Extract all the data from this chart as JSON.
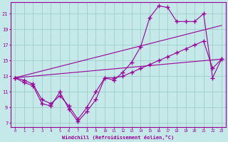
{
  "xlabel": "Windchill (Refroidissement éolien,°C)",
  "xlim": [
    -0.5,
    23.5
  ],
  "ylim": [
    6.5,
    22.5
  ],
  "xticks": [
    0,
    1,
    2,
    3,
    4,
    5,
    6,
    7,
    8,
    9,
    10,
    11,
    12,
    13,
    14,
    15,
    16,
    17,
    18,
    19,
    20,
    21,
    22,
    23
  ],
  "yticks": [
    7,
    9,
    11,
    13,
    15,
    17,
    19,
    21
  ],
  "bg_color": "#c5e8e8",
  "line_color": "#990099",
  "grid_color": "#9ac8c8",
  "line1_x": [
    0,
    1,
    2,
    3,
    4,
    5,
    6,
    7,
    8,
    9,
    10,
    11,
    12,
    13,
    14,
    15,
    16,
    17,
    18,
    19,
    20,
    21,
    22,
    23
  ],
  "line1_y": [
    12.8,
    12.2,
    11.8,
    9.5,
    9.2,
    11.0,
    8.8,
    7.2,
    8.5,
    10.0,
    12.8,
    12.5,
    13.5,
    14.8,
    16.8,
    20.5,
    22.0,
    21.8,
    20.0,
    20.0,
    20.0,
    21.0,
    12.8,
    15.2
  ],
  "line2_x": [
    0,
    23
  ],
  "line2_y": [
    12.8,
    19.5
  ],
  "line3_x": [
    0,
    23
  ],
  "line3_y": [
    12.8,
    15.2
  ],
  "line4_x": [
    0,
    1,
    2,
    3,
    4,
    5,
    6,
    7,
    8,
    9,
    10,
    11,
    12,
    13,
    14,
    15,
    16,
    17,
    18,
    19,
    20,
    21,
    22,
    23
  ],
  "line4_y": [
    12.8,
    12.5,
    12.0,
    10.0,
    9.5,
    10.5,
    9.2,
    7.5,
    9.0,
    11.0,
    12.8,
    12.8,
    13.0,
    13.5,
    14.0,
    14.5,
    15.0,
    15.5,
    16.0,
    16.5,
    17.0,
    17.5,
    14.0,
    15.2
  ]
}
